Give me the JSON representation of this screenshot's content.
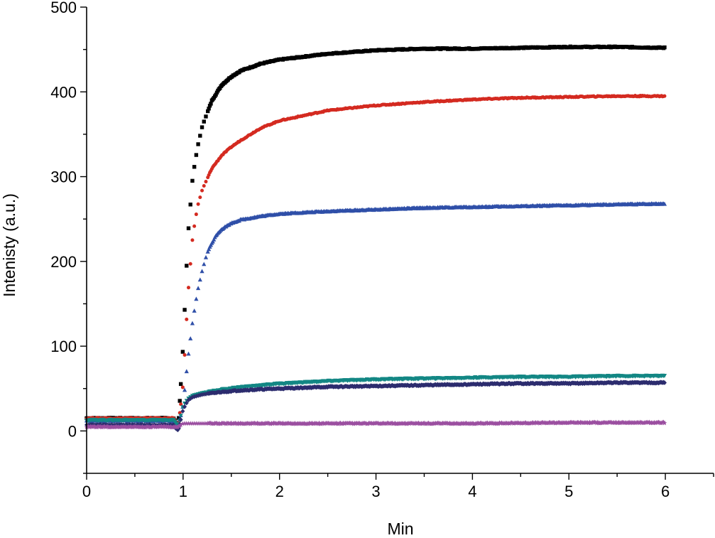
{
  "chart_data": {
    "type": "scatter",
    "title": "",
    "xlabel": "Min",
    "ylabel": "Intenisty (a.u.)",
    "xlim": [
      0,
      6.5
    ],
    "ylim": [
      -50,
      500
    ],
    "x_ticks": [
      0,
      1,
      2,
      3,
      4,
      5,
      6
    ],
    "x_tick_labels": [
      "0",
      "1",
      "2",
      "3",
      "4",
      "5",
      "6"
    ],
    "y_ticks": [
      0,
      100,
      200,
      300,
      400,
      500
    ],
    "y_tick_labels": [
      "0",
      "100",
      "200",
      "300",
      "400",
      "500"
    ],
    "grid": false,
    "legend": "none",
    "series": [
      {
        "marker": "square",
        "color": "#000000",
        "x": [
          0,
          0.9,
          0.95,
          1.0,
          1.05,
          1.1,
          1.15,
          1.2,
          1.3,
          1.4,
          1.5,
          1.6,
          1.8,
          2.0,
          2.5,
          3.0,
          3.5,
          4.0,
          4.5,
          5.0,
          5.5,
          6.0
        ],
        "y": [
          15,
          15,
          5,
          100,
          230,
          300,
          335,
          360,
          390,
          408,
          418,
          425,
          433,
          438,
          445,
          449,
          451,
          451,
          452,
          453,
          453,
          452
        ]
      },
      {
        "marker": "circle",
        "color": "#d42a20",
        "x": [
          0,
          0.9,
          0.95,
          1.0,
          1.05,
          1.1,
          1.15,
          1.2,
          1.3,
          1.4,
          1.5,
          1.6,
          1.8,
          2.0,
          2.5,
          3.0,
          3.5,
          4.0,
          4.5,
          5.0,
          5.5,
          6.0
        ],
        "y": [
          15,
          15,
          5,
          55,
          160,
          230,
          265,
          285,
          310,
          325,
          335,
          343,
          357,
          366,
          378,
          384,
          388,
          391,
          393,
          394,
          395,
          395
        ]
      },
      {
        "marker": "triangle-up",
        "color": "#2f4fa8",
        "x": [
          0,
          0.9,
          0.95,
          1.0,
          1.05,
          1.1,
          1.15,
          1.2,
          1.25,
          1.3,
          1.35,
          1.4,
          1.5,
          1.6,
          1.8,
          2.0,
          2.5,
          3.0,
          3.5,
          4.0,
          4.5,
          5.0,
          5.5,
          6.0
        ],
        "y": [
          12,
          12,
          5,
          30,
          85,
          130,
          165,
          190,
          210,
          222,
          232,
          238,
          245,
          249,
          253,
          256,
          259,
          261,
          263,
          264,
          265,
          266,
          267,
          268
        ]
      },
      {
        "marker": "triangle-down",
        "color": "#138784",
        "x": [
          0,
          0.9,
          0.95,
          1.0,
          1.05,
          1.1,
          1.2,
          1.4,
          1.6,
          2.0,
          2.5,
          3.0,
          3.5,
          4.0,
          4.5,
          5.0,
          5.5,
          6.0
        ],
        "y": [
          13,
          13,
          5,
          30,
          38,
          42,
          45,
          49,
          52,
          56,
          59,
          61,
          62,
          63,
          64,
          64,
          65,
          65
        ]
      },
      {
        "marker": "diamond",
        "color": "#2c2c6e",
        "x": [
          0,
          0.9,
          0.95,
          1.0,
          1.05,
          1.1,
          1.2,
          1.4,
          1.6,
          2.0,
          2.5,
          3.0,
          3.5,
          4.0,
          4.5,
          5.0,
          5.5,
          6.0
        ],
        "y": [
          7,
          7,
          0,
          25,
          36,
          40,
          43,
          46,
          48,
          50,
          52,
          53,
          54,
          55,
          56,
          56,
          57,
          57
        ]
      },
      {
        "marker": "star",
        "color": "#9b4fa0",
        "x": [
          0,
          0.9,
          0.95,
          1.0,
          1.1,
          1.5,
          2.0,
          3.0,
          4.0,
          5.0,
          6.0
        ],
        "y": [
          5,
          5,
          5,
          9,
          9,
          9,
          9,
          9,
          9,
          10,
          10
        ]
      }
    ]
  }
}
